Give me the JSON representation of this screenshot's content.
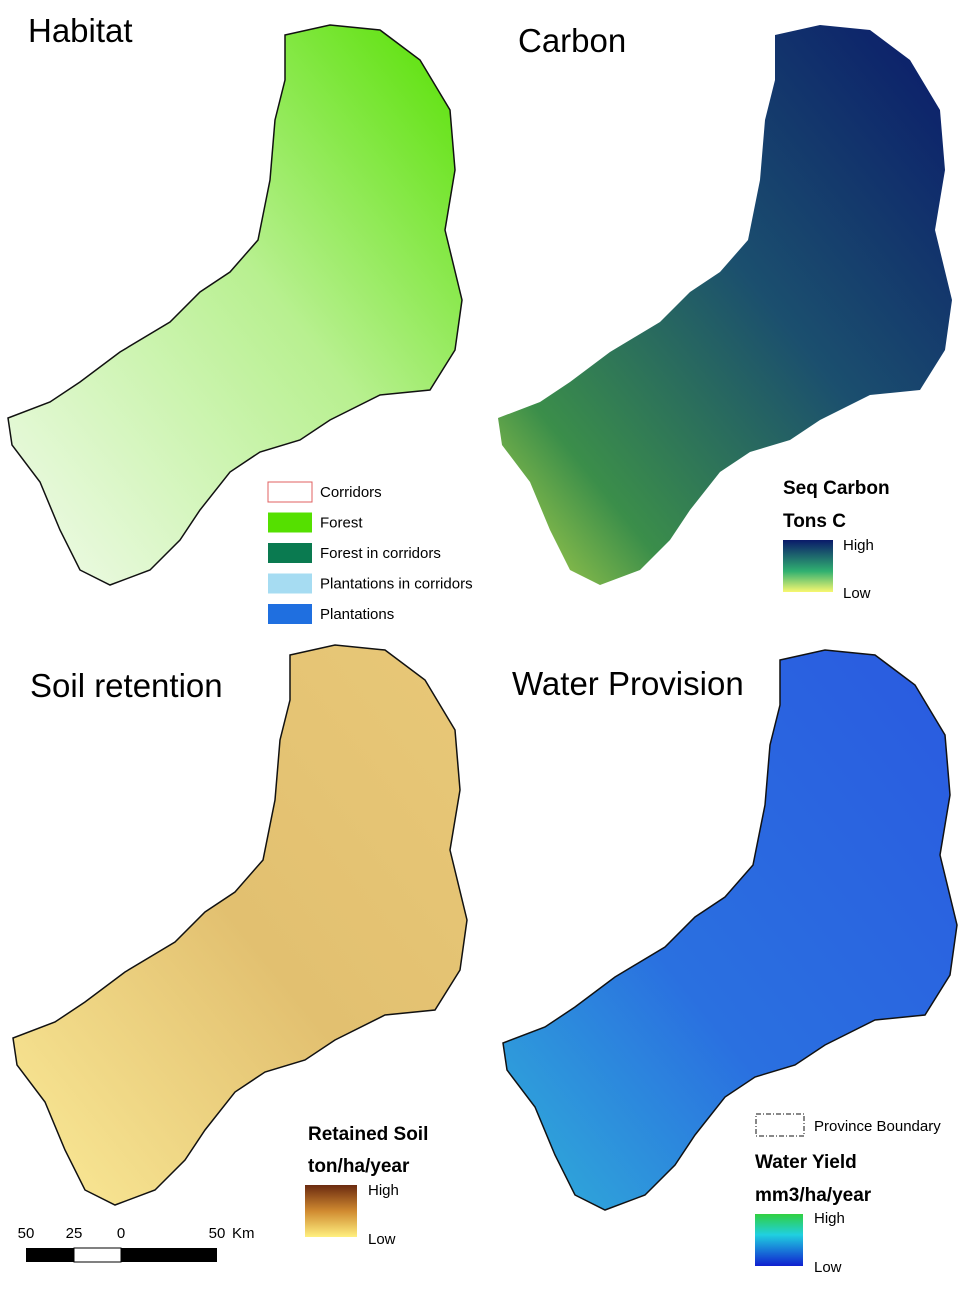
{
  "panels": [
    {
      "title": "Habitat",
      "legend": {
        "items": [
          {
            "label": "Corridors",
            "color": "#ffffff",
            "stroke": "#e06060"
          },
          {
            "label": "Forest",
            "color": "#55e000"
          },
          {
            "label": "Forest in corridors",
            "color": "#0a7a50"
          },
          {
            "label": "Plantations in corridors",
            "color": "#a6dcf2"
          },
          {
            "label": "Plantations",
            "color": "#1f6fe0"
          }
        ]
      }
    },
    {
      "title": "Carbon",
      "legend": {
        "title": "Seq Carbon",
        "unit": "Tons C",
        "high": "High",
        "low": "Low"
      }
    },
    {
      "title": "Soil retention",
      "legend": {
        "title": "Retained Soil",
        "unit": "ton/ha/year",
        "high": "High",
        "low": "Low"
      }
    },
    {
      "title": "Water Provision",
      "legend": {
        "boundary": "Province Boundary",
        "title": "Water Yield",
        "unit": "mm3/ha/year",
        "high": "High",
        "low": "Low"
      }
    }
  ],
  "scale_bar": {
    "labels": [
      "50",
      "25",
      "0",
      "50"
    ],
    "unit": "Km"
  }
}
